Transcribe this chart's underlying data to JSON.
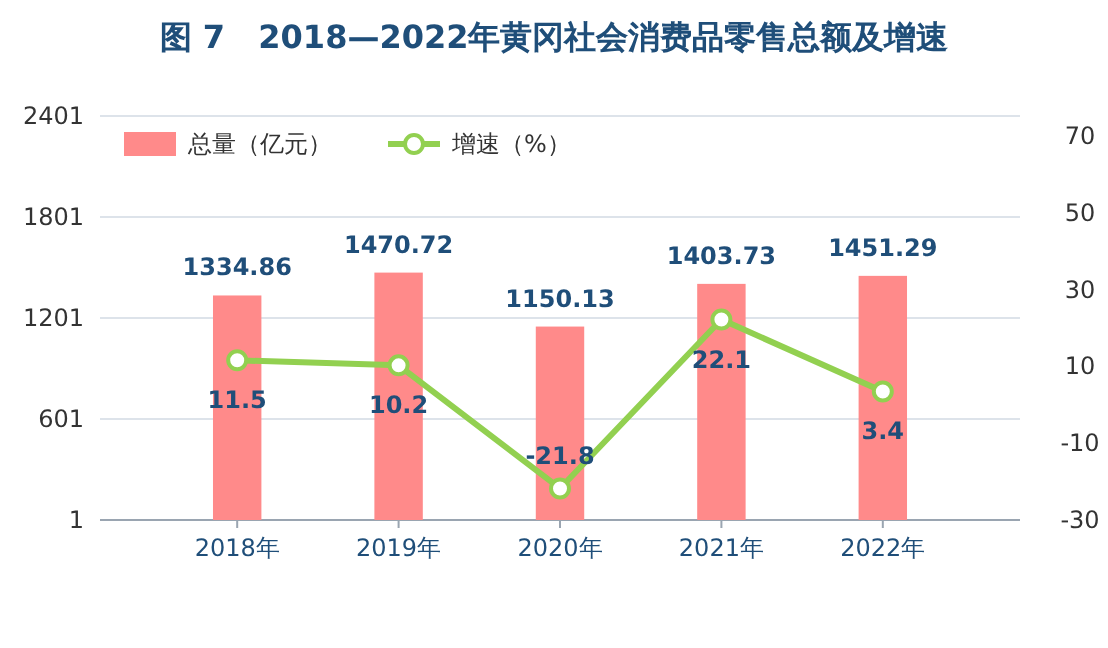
{
  "chart_data": {
    "type": "bar",
    "title": "图 7   2018—2022年黄冈社会消费品零售总额及增速",
    "categories": [
      "2018年",
      "2019年",
      "2020年",
      "2021年",
      "2022年"
    ],
    "series": [
      {
        "name": "总量（亿元）",
        "color": "#ff8a8a",
        "values": [
          1334.86,
          1470.72,
          1150.13,
          1403.73,
          1451.29
        ]
      },
      {
        "name": "增速（%）",
        "type": "line",
        "axis": "y2",
        "color": "#92d050",
        "values": [
          11.5,
          10.2,
          -21.8,
          22.1,
          3.4
        ]
      }
    ],
    "ylim": [
      1,
      2401
    ],
    "yticks": [
      1,
      601,
      1201,
      1801,
      2401
    ],
    "y2lim": [
      -30,
      75
    ],
    "y2ticks": [
      -30,
      -10,
      10,
      30,
      50,
      70
    ],
    "grid": "y",
    "legend": "top left",
    "marker": "circle",
    "line_style": "solid",
    "data_labels": true
  }
}
